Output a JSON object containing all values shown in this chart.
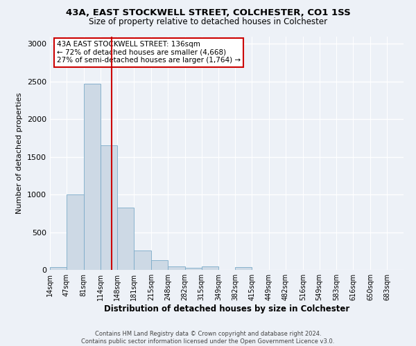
{
  "title_line1": "43A, EAST STOCKWELL STREET, COLCHESTER, CO1 1SS",
  "title_line2": "Size of property relative to detached houses in Colchester",
  "xlabel": "Distribution of detached houses by size in Colchester",
  "ylabel": "Number of detached properties",
  "bar_color": "#cdd9e5",
  "bar_edge_color": "#7aaac8",
  "bin_edges": [
    14,
    47,
    81,
    114,
    148,
    181,
    215,
    248,
    282,
    315,
    349,
    382,
    415,
    449,
    482,
    516,
    549,
    583,
    616,
    650,
    683
  ],
  "bar_heights": [
    40,
    1000,
    2470,
    1650,
    830,
    260,
    130,
    50,
    30,
    50,
    0,
    40,
    0,
    0,
    0,
    0,
    0,
    0,
    0,
    0
  ],
  "tick_labels": [
    "14sqm",
    "47sqm",
    "81sqm",
    "114sqm",
    "148sqm",
    "181sqm",
    "215sqm",
    "248sqm",
    "282sqm",
    "315sqm",
    "349sqm",
    "382sqm",
    "415sqm",
    "449sqm",
    "482sqm",
    "516sqm",
    "549sqm",
    "583sqm",
    "616sqm",
    "650sqm",
    "683sqm"
  ],
  "vline_x": 136,
  "vline_color": "#cc0000",
  "annotation_text": "43A EAST STOCKWELL STREET: 136sqm\n← 72% of detached houses are smaller (4,668)\n27% of semi-detached houses are larger (1,764) →",
  "annotation_box_color": "#cc0000",
  "ylim": [
    0,
    3100
  ],
  "yticks": [
    0,
    500,
    1000,
    1500,
    2000,
    2500,
    3000
  ],
  "background_color": "#edf1f7",
  "grid_color": "#ffffff",
  "footer_line1": "Contains HM Land Registry data © Crown copyright and database right 2024.",
  "footer_line2": "Contains public sector information licensed under the Open Government Licence v3.0."
}
